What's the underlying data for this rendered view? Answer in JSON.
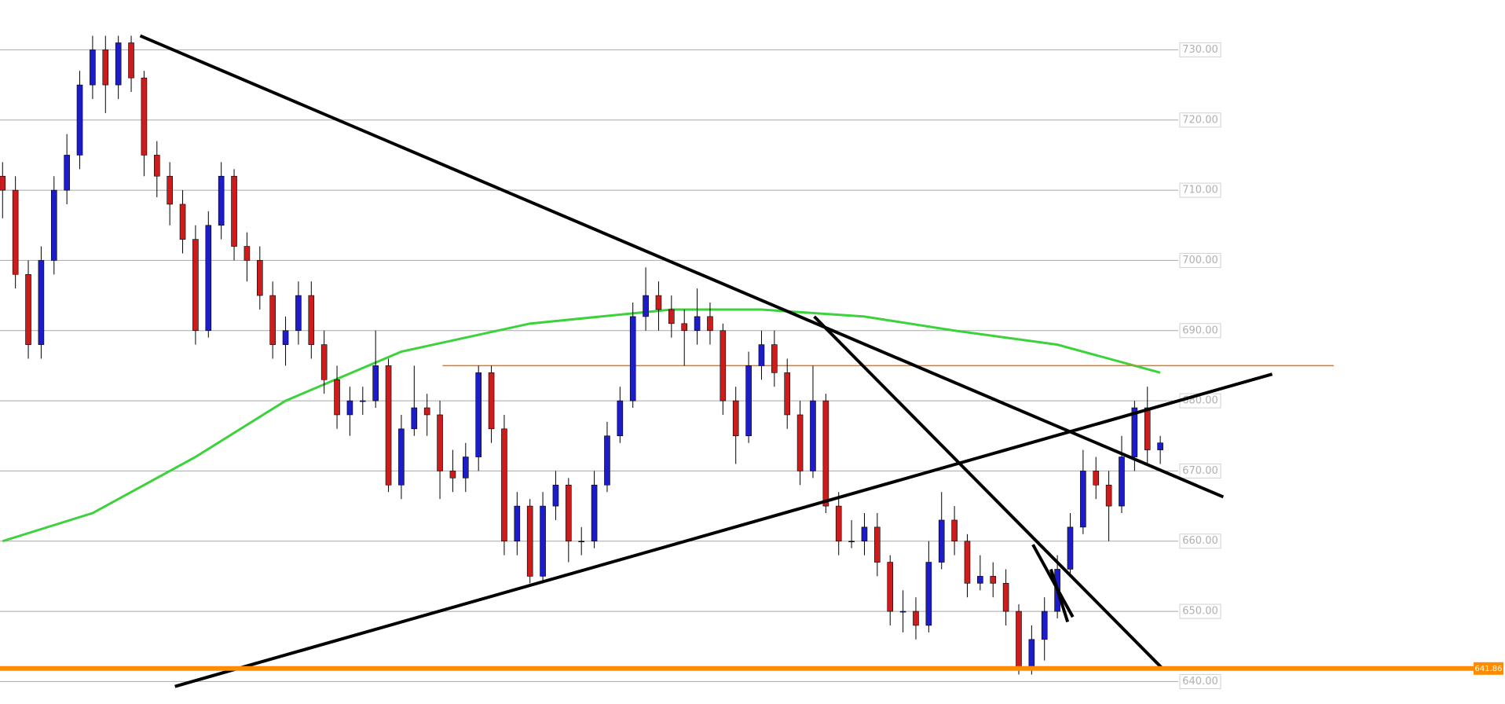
{
  "chart_data": {
    "type": "candlestick",
    "open": [
      712,
      710,
      698,
      688,
      700,
      710,
      715,
      725,
      730,
      725,
      731,
      726,
      715,
      712,
      708,
      703,
      690,
      705,
      712,
      702,
      700,
      695,
      688,
      690,
      695,
      688,
      683,
      678,
      680,
      680,
      685,
      668,
      676,
      679,
      678,
      670,
      669,
      672,
      684,
      676,
      660,
      665,
      655,
      665,
      668,
      660,
      660,
      668,
      675,
      680,
      692,
      695,
      693,
      691,
      690,
      692,
      690,
      680,
      675,
      685,
      688,
      684,
      678,
      670,
      680,
      665,
      660,
      660,
      662,
      657,
      650,
      650,
      648,
      657,
      663,
      660,
      654,
      655,
      654,
      650,
      642,
      646,
      650,
      656,
      662,
      670,
      668,
      665,
      672,
      679,
      673
    ],
    "high": [
      714,
      712,
      700,
      702,
      712,
      718,
      727,
      732,
      732,
      732,
      732,
      727,
      717,
      714,
      710,
      705,
      707,
      714,
      713,
      704,
      702,
      697,
      692,
      697,
      697,
      690,
      685,
      682,
      682,
      690,
      686,
      678,
      685,
      681,
      680,
      673,
      674,
      685,
      685,
      678,
      667,
      666,
      667,
      670,
      669,
      662,
      670,
      677,
      682,
      694,
      699,
      697,
      695,
      693,
      696,
      694,
      691,
      682,
      687,
      690,
      690,
      686,
      680,
      685,
      681,
      667,
      663,
      664,
      664,
      658,
      653,
      652,
      660,
      667,
      665,
      661,
      658,
      657,
      656,
      651,
      648,
      652,
      658,
      664,
      673,
      672,
      670,
      675,
      680,
      682,
      675
    ],
    "low": [
      706,
      696,
      686,
      686,
      698,
      708,
      713,
      723,
      721,
      723,
      724,
      712,
      709,
      705,
      701,
      688,
      689,
      703,
      700,
      697,
      693,
      686,
      685,
      688,
      686,
      681,
      676,
      675,
      678,
      679,
      667,
      666,
      675,
      675,
      666,
      667,
      667,
      670,
      674,
      658,
      658,
      654,
      654,
      663,
      657,
      658,
      659,
      667,
      674,
      679,
      690,
      690,
      689,
      685,
      688,
      688,
      678,
      671,
      674,
      683,
      682,
      676,
      668,
      669,
      664,
      658,
      659,
      658,
      655,
      648,
      647,
      646,
      647,
      656,
      658,
      652,
      653,
      652,
      648,
      641,
      641,
      643,
      649,
      655,
      661,
      666,
      660,
      664,
      670,
      671,
      671
    ],
    "close": [
      710,
      698,
      688,
      700,
      710,
      715,
      725,
      730,
      725,
      731,
      726,
      715,
      712,
      708,
      703,
      690,
      705,
      712,
      702,
      700,
      695,
      688,
      690,
      695,
      688,
      683,
      678,
      680,
      680,
      685,
      668,
      676,
      679,
      678,
      670,
      669,
      672,
      684,
      676,
      660,
      665,
      655,
      665,
      668,
      660,
      660,
      668,
      675,
      680,
      692,
      695,
      693,
      691,
      690,
      692,
      690,
      680,
      675,
      685,
      688,
      684,
      678,
      670,
      680,
      665,
      660,
      660,
      662,
      657,
      650,
      650,
      648,
      657,
      663,
      660,
      654,
      655,
      654,
      650,
      642,
      646,
      650,
      656,
      662,
      670,
      668,
      665,
      672,
      679,
      673,
      674
    ],
    "up_color": "#1c1cc8",
    "down_color": "#cc1c1c",
    "xlim": [
      -0.2,
      116.8
    ],
    "ylim": [
      636.8,
      737.1
    ],
    "yticks": [
      {
        "value": 640,
        "label": "640.00"
      },
      {
        "value": 650,
        "label": "650.00"
      },
      {
        "value": 660,
        "label": "660.00"
      },
      {
        "value": 670,
        "label": "670.00"
      },
      {
        "value": 680,
        "label": "680.00"
      },
      {
        "value": 690,
        "label": "690.00"
      },
      {
        "value": 700,
        "label": "700.00"
      },
      {
        "value": 710,
        "label": "710.00"
      },
      {
        "value": 720,
        "label": "720.00"
      },
      {
        "value": 730,
        "label": "730.00"
      }
    ],
    "grid": true,
    "ma": {
      "color": "#3cd23c",
      "x": [
        0,
        7,
        15,
        22,
        31,
        41,
        52,
        59,
        67,
        74,
        82,
        90
      ],
      "values": [
        660,
        664,
        672,
        680,
        687,
        691,
        693,
        693,
        692,
        690,
        688,
        684
      ]
    },
    "trendlines": [
      {
        "color": "#000000",
        "x": [
          10.7,
          94.9
        ],
        "y": [
          732,
          666.3
        ]
      },
      {
        "color": "#000000",
        "x": [
          13.4,
          98.7
        ],
        "y": [
          639.3,
          683.8
        ]
      },
      {
        "color": "#000000",
        "x": [
          63.1,
          90.2
        ],
        "y": [
          692,
          641.8
        ]
      },
      {
        "color": "#000000",
        "x": [
          80.1,
          83.2
        ],
        "y": [
          659.5,
          649.2
        ]
      },
      {
        "color": "#000000",
        "x": [
          81.5,
          82.8
        ],
        "y": [
          656,
          648.5
        ]
      }
    ],
    "hline": {
      "color": "#e8761a",
      "x": [
        34.2,
        103.5
      ],
      "value": 685
    },
    "price_line": {
      "color": "#ff8c00",
      "value": 641.86
    }
  }
}
